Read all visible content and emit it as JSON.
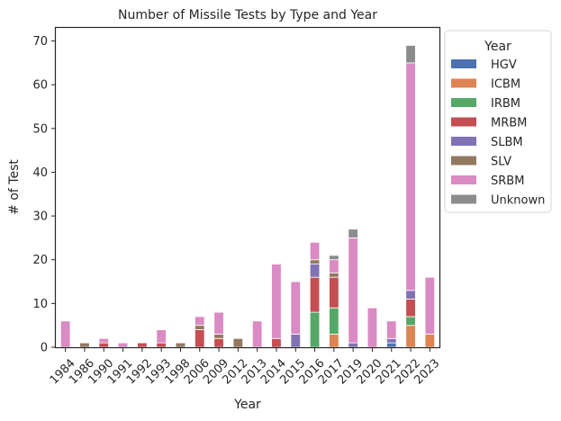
{
  "chart_data": {
    "type": "bar",
    "stacked": true,
    "title": "Number of Missile Tests by Type and Year",
    "xlabel": "Year",
    "ylabel": "# of Test",
    "ylim": [
      0,
      73
    ],
    "yticks": [
      0,
      10,
      20,
      30,
      40,
      50,
      60,
      70
    ],
    "grid": false,
    "legend": {
      "title": "Year",
      "placement": "outside right"
    },
    "categories": [
      "1984",
      "1986",
      "1990",
      "1991",
      "1992",
      "1993",
      "1998",
      "2006",
      "2009",
      "2012",
      "2013",
      "2014",
      "2015",
      "2016",
      "2017",
      "2019",
      "2020",
      "2021",
      "2022",
      "2023"
    ],
    "series": [
      {
        "name": "HGV",
        "color": "#4c72b0",
        "values": [
          0,
          0,
          0,
          0,
          0,
          0,
          0,
          0,
          0,
          0,
          0,
          0,
          0,
          0,
          0,
          0,
          0,
          1,
          0,
          0
        ]
      },
      {
        "name": "ICBM",
        "color": "#dd8452",
        "values": [
          0,
          0,
          0,
          0,
          0,
          0,
          0,
          0,
          0,
          0,
          0,
          0,
          0,
          0,
          3,
          0,
          0,
          0,
          5,
          3
        ]
      },
      {
        "name": "IRBM",
        "color": "#55a868",
        "values": [
          0,
          0,
          0,
          0,
          0,
          0,
          0,
          0,
          0,
          0,
          0,
          0,
          0,
          8,
          6,
          0,
          0,
          0,
          2,
          0
        ]
      },
      {
        "name": "MRBM",
        "color": "#c44e52",
        "values": [
          0,
          0,
          1,
          0,
          1,
          1,
          0,
          4,
          2,
          0,
          0,
          2,
          0,
          8,
          7,
          0,
          0,
          0,
          4,
          0
        ]
      },
      {
        "name": "SLBM",
        "color": "#8172b3",
        "values": [
          0,
          0,
          0,
          0,
          0,
          0,
          0,
          0,
          0,
          0,
          0,
          0,
          3,
          3,
          0,
          1,
          0,
          1,
          2,
          0
        ]
      },
      {
        "name": "SLV",
        "color": "#937860",
        "values": [
          0,
          1,
          0,
          0,
          0,
          0,
          1,
          1,
          1,
          2,
          0,
          0,
          0,
          1,
          1,
          0,
          0,
          0,
          0,
          0
        ]
      },
      {
        "name": "SRBM",
        "color": "#da8bc3",
        "values": [
          6,
          0,
          1,
          1,
          0,
          3,
          0,
          2,
          5,
          0,
          6,
          17,
          12,
          4,
          3,
          24,
          9,
          4,
          52,
          13
        ]
      },
      {
        "name": "Unknown",
        "color": "#8c8c8c",
        "values": [
          0,
          0,
          0,
          0,
          0,
          0,
          0,
          0,
          0,
          0,
          0,
          0,
          0,
          0,
          1,
          2,
          0,
          0,
          4,
          0
        ]
      }
    ]
  }
}
